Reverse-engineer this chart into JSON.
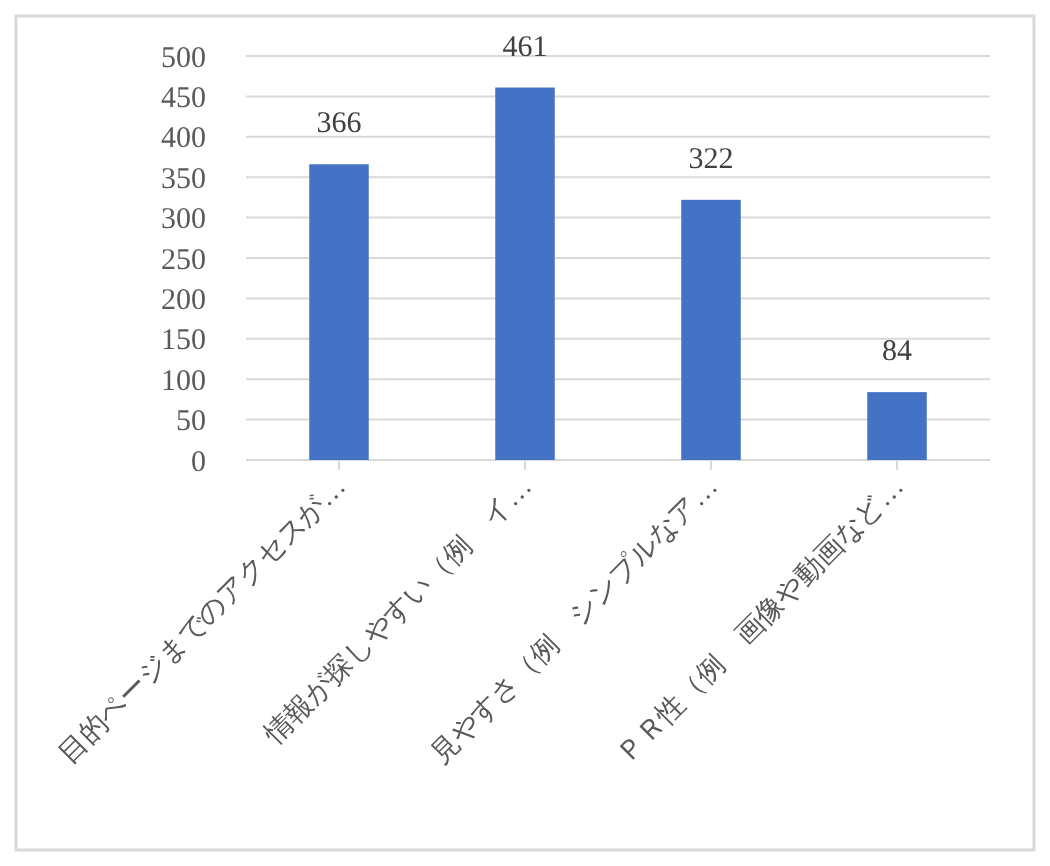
{
  "chart_data": {
    "type": "bar",
    "categories": [
      "目的ページまでのアクセスが…",
      "情報が探しやすい（例　イ…",
      "見やすさ（例　シンプルなア…",
      "ＰＲ性（例　画像や動画など…"
    ],
    "values": [
      366,
      461,
      322,
      84
    ],
    "color": "#4472c4",
    "ylim": [
      0,
      500
    ],
    "yticks": [
      0,
      50,
      100,
      150,
      200,
      250,
      300,
      350,
      400,
      450,
      500
    ],
    "grid": "y",
    "data_labels": true
  }
}
